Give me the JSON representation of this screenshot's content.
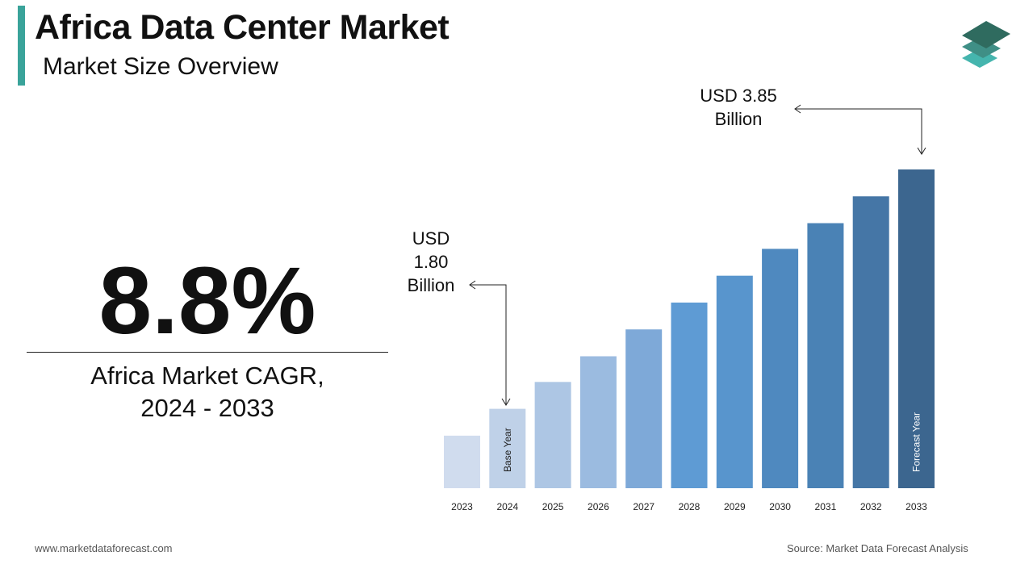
{
  "header": {
    "title": "Africa Data Center Market",
    "subtitle": "Market Size Overview"
  },
  "cagr": {
    "value": "8.8%",
    "label_line1": "Africa Market CAGR,",
    "label_line2": "2024 - 2033"
  },
  "callouts": {
    "end": {
      "line1": "USD 3.85",
      "line2": "Billion"
    },
    "base": {
      "line1": "USD",
      "line2": "1.80",
      "line3": "Billion"
    }
  },
  "footer": {
    "website": "www.marketdataforecast.com",
    "source": "Source: Market Data Forecast Analysis"
  },
  "colors": {
    "accent": "#3aa39a",
    "logo": [
      "#2f6b5f",
      "#3f8f86",
      "#45b5ae"
    ]
  },
  "chart_data": {
    "type": "bar",
    "categories": [
      "2023",
      "2024",
      "2025",
      "2026",
      "2027",
      "2028",
      "2029",
      "2030",
      "2031",
      "2032",
      "2033"
    ],
    "values": [
      1.57,
      1.8,
      2.03,
      2.25,
      2.48,
      2.71,
      2.94,
      3.17,
      3.39,
      3.62,
      3.85
    ],
    "colors": [
      "#d0dcee",
      "#bfd1e8",
      "#adc6e4",
      "#9bbbe0",
      "#7ea9d8",
      "#5e9bd4",
      "#5895cd",
      "#4f89bf",
      "#4a82b5",
      "#4576a6",
      "#3c668f"
    ],
    "bar_annotations": {
      "2024": "Base Year",
      "2033": "Forecast Year"
    },
    "unit": "USD Billion",
    "ylim": [
      1.12,
      3.85
    ],
    "grid": false,
    "axes_visible": false
  }
}
